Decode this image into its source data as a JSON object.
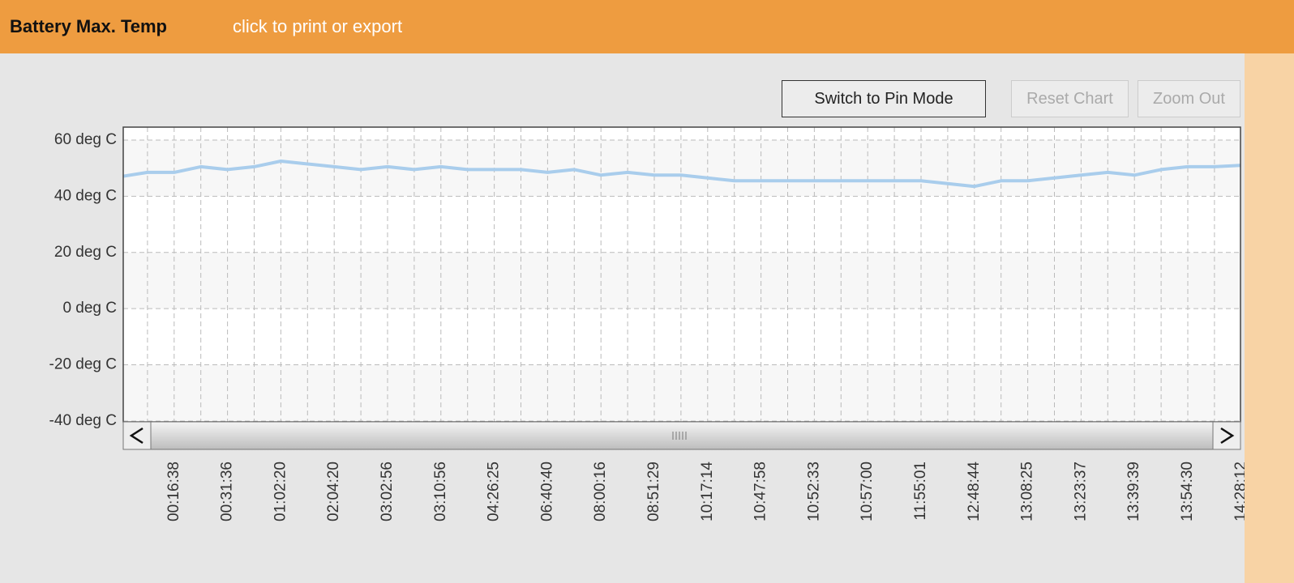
{
  "header": {
    "title": "Battery Max. Temp",
    "link": "click to print or export"
  },
  "buttons": [
    "Switch to Pin Mode",
    "Reset Chart",
    "Zoom Out"
  ],
  "chart_data": {
    "type": "line",
    "categories": [
      null,
      null,
      "00:16:38",
      null,
      "00:31:36",
      null,
      "01:02:20",
      null,
      "02:04:20",
      null,
      "03:02:56",
      null,
      "03:10:56",
      null,
      "04:26:25",
      null,
      "06:40:40",
      null,
      "08:00:16",
      null,
      "08:51:29",
      null,
      "10:17:14",
      null,
      "10:47:58",
      null,
      "10:52:33",
      null,
      "10:57:00",
      null,
      "11:55:01",
      null,
      "12:48:44",
      null,
      "13:08:25",
      null,
      "13:23:37",
      null,
      "13:39:39",
      null,
      "13:54:30",
      null,
      "14:28:12"
    ],
    "series": [
      {
        "name": "Battery Max. Temp",
        "color": "#a9cdec",
        "values": [
          47,
          48.5,
          48.5,
          50.5,
          49.5,
          50.5,
          52.5,
          51.5,
          50.5,
          49.5,
          50.5,
          49.5,
          50.5,
          49.5,
          49.5,
          49.5,
          48.5,
          49.5,
          47.5,
          48.5,
          47.5,
          47.5,
          46.5,
          45.5,
          45.5,
          45.5,
          45.5,
          45.5,
          45.5,
          45.5,
          45.5,
          44.5,
          43.5,
          45.5,
          45.5,
          46.5,
          47.5,
          48.5,
          47.5,
          49.5,
          50.5,
          50.5,
          51
        ]
      }
    ],
    "ylim": [
      -40.3,
      64.6
    ],
    "yticks": [
      {
        "value": -40,
        "label": "-40 deg C"
      },
      {
        "value": -20,
        "label": "-20 deg C"
      },
      {
        "value": 0,
        "label": "0 deg C"
      },
      {
        "value": 20,
        "label": "20 deg C"
      },
      {
        "value": 40,
        "label": "40 deg C"
      },
      {
        "value": 60,
        "label": "60 deg C"
      }
    ],
    "grid": true
  }
}
